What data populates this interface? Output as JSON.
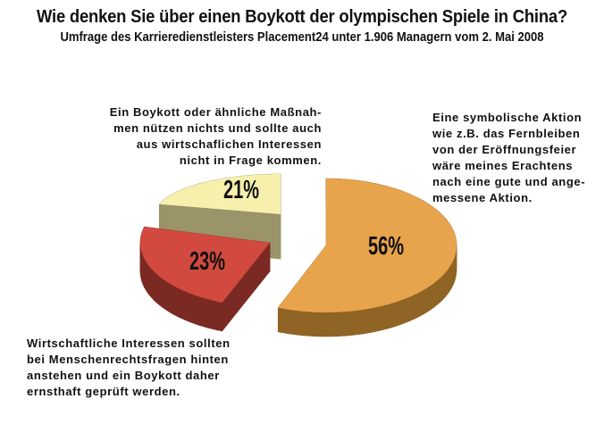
{
  "title": "Wie denken Sie über einen Boykott der olympischen Spiele in China?",
  "subtitle": "Umfrage des Karrieredienstleisters Placement24 unter 1.906 Managern vom 2. Mai 2008",
  "chart_data": {
    "type": "pie",
    "style": "3d-exploded",
    "slices": [
      {
        "value": 56,
        "label": "56%",
        "description": "Eine symbolische Aktion\nwie z.B. das Fernbleiben\nvon der Eröffnungsfeier\nwäre meines Erachtens\nnach eine gute und ange-\nmessene Aktion.",
        "color": "#e8a44c",
        "side_color": "#8f6424"
      },
      {
        "value": 23,
        "label": "23%",
        "description": "Wirtschaftliche Interessen sollten\nbei Menschenrechtsfragen hinten\nanstehen und ein Boykott daher\nernsthaft geprüft werden.",
        "color": "#d24a3f",
        "side_color": "#7a2a22"
      },
      {
        "value": 21,
        "label": "21%",
        "description": "Ein Boykott oder ähnliche Maßnah-\nmen nützen nichts und sollte auch\naus wirtschaflichen Interessen\nnicht in Frage kommen.",
        "color": "#f7f0ad",
        "side_color": "#9a9468"
      }
    ]
  }
}
